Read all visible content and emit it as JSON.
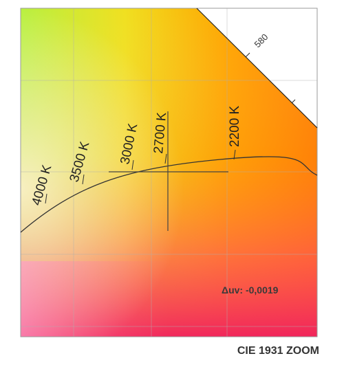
{
  "chart_data": {
    "type": "scatter",
    "title": "CIE 1931 ZOOM",
    "xlabel": "",
    "ylabel": "",
    "grid": true,
    "locus_labels": [
      "4000 K",
      "3500 K",
      "3000 K",
      "2700 K",
      "2200 K"
    ],
    "spectral_label": "580",
    "annotation": "Δuv: -0,0019",
    "series": [
      {
        "points": [
          {
            "label": "2700 K"
          }
        ]
      }
    ],
    "colors": {
      "planckian_locus": "#333333",
      "grid": "#b0b0b0",
      "spectral_locus": "#222222"
    }
  }
}
